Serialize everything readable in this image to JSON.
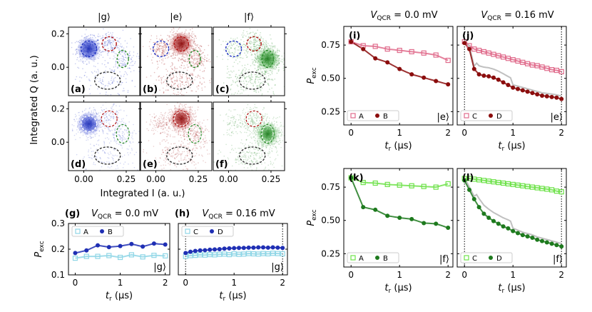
{
  "figure": {
    "scatter_titles": [
      "|g⟩",
      "|e⟩",
      "|f⟩"
    ],
    "scatter_xlabel": "Integrated I (a. u.)",
    "scatter_ylabel": "Integrated Q (a. u.)",
    "scatter_letters": [
      "(a)",
      "(b)",
      "(c)",
      "(d)",
      "(e)",
      "(f)"
    ],
    "right_titles": [
      "V_QCR = 0.0 mV",
      "V_QCR = 0.16 mV"
    ],
    "pexc_ylabel": "P_exc",
    "tr_xlabel": "t_r (µs)",
    "colors": {
      "g_dark": "#1f2fb4",
      "g_light": "#8fd6e6",
      "e_dark": "#8b0d0d",
      "e_light": "#e06c8c",
      "f_dark": "#1e7a1e",
      "f_light": "#6ee24a",
      "grey": "#c0c0c0"
    }
  },
  "chart_data": [
    {
      "type": "scatter",
      "panels": [
        "(a) |g⟩",
        "(b) |e⟩",
        "(c) |f⟩",
        "(d) |g⟩",
        "(e) |e⟩",
        "(f) |f⟩"
      ],
      "xlabel": "Integrated I (a. u.)",
      "ylabel": "Integrated Q (a. u.)",
      "xlim": [
        -0.09,
        0.33
      ],
      "ylim": [
        -0.17,
        0.24
      ],
      "xticks": [
        "0.00",
        "0.25"
      ],
      "yticks": [
        "0.0",
        "0.2"
      ],
      "state_centers": {
        "g": [
          0.03,
          0.11
        ],
        "e": [
          0.15,
          0.14
        ],
        "f": [
          0.23,
          0.05
        ],
        "other": [
          0.14,
          -0.08
        ]
      }
    },
    {
      "panel": "(g)",
      "type": "scatter+line",
      "title": "V_QCR = 0.0 mV",
      "xlabel": "t_r (µs)",
      "ylabel": "P_exc",
      "ylim": [
        0.1,
        0.3
      ],
      "xlim": [
        -0.15,
        2.1
      ],
      "state_label": "|g⟩",
      "series": [
        {
          "name": "A",
          "marker": "open-square",
          "x": [
            0.0,
            0.25,
            0.5,
            0.75,
            1.0,
            1.25,
            1.5,
            1.75,
            2.0
          ],
          "y": [
            0.165,
            0.172,
            0.172,
            0.175,
            0.168,
            0.178,
            0.17,
            0.176,
            0.174
          ]
        },
        {
          "name": "B",
          "marker": "filled-circle",
          "x": [
            0.0,
            0.25,
            0.5,
            0.75,
            1.0,
            1.25,
            1.5,
            1.75,
            2.0
          ],
          "y": [
            0.185,
            0.195,
            0.215,
            0.208,
            0.212,
            0.22,
            0.21,
            0.222,
            0.218
          ]
        }
      ]
    },
    {
      "panel": "(h)",
      "type": "scatter+line",
      "title": "V_QCR = 0.16 mV",
      "xlabel": "t_r (µs)",
      "ylim": [
        0.1,
        0.3
      ],
      "xlim": [
        -0.15,
        2.1
      ],
      "state_label": "|g⟩",
      "series": [
        {
          "name": "C",
          "marker": "open-square",
          "x": [
            0.0,
            0.1,
            0.2,
            0.3,
            0.4,
            0.5,
            0.6,
            0.7,
            0.8,
            0.9,
            1.0,
            1.1,
            1.2,
            1.3,
            1.4,
            1.5,
            1.6,
            1.7,
            1.8,
            1.9,
            2.0
          ],
          "y": [
            0.172,
            0.175,
            0.176,
            0.178,
            0.177,
            0.179,
            0.178,
            0.18,
            0.181,
            0.179,
            0.182,
            0.18,
            0.181,
            0.183,
            0.182,
            0.181,
            0.183,
            0.182,
            0.184,
            0.183,
            0.182
          ]
        },
        {
          "name": "D",
          "marker": "filled-circle",
          "x": [
            0.0,
            0.1,
            0.2,
            0.3,
            0.4,
            0.5,
            0.6,
            0.7,
            0.8,
            0.9,
            1.0,
            1.1,
            1.2,
            1.3,
            1.4,
            1.5,
            1.6,
            1.7,
            1.8,
            1.9,
            2.0
          ],
          "y": [
            0.185,
            0.19,
            0.193,
            0.195,
            0.196,
            0.198,
            0.199,
            0.2,
            0.202,
            0.203,
            0.204,
            0.205,
            0.205,
            0.206,
            0.206,
            0.207,
            0.207,
            0.206,
            0.207,
            0.206,
            0.205
          ]
        }
      ]
    },
    {
      "panel": "(i)",
      "type": "scatter+line",
      "title": "V_QCR = 0.0 mV",
      "xlabel": "t_r (µs)",
      "ylabel": "P_exc",
      "ylim": [
        0.15,
        0.89
      ],
      "xlim": [
        -0.15,
        2.1
      ],
      "state_label": "|e⟩",
      "series": [
        {
          "name": "A",
          "marker": "open-square",
          "x": [
            0.0,
            0.25,
            0.5,
            0.75,
            1.0,
            1.25,
            1.5,
            1.75,
            2.0
          ],
          "y": [
            0.775,
            0.745,
            0.74,
            0.72,
            0.71,
            0.7,
            0.69,
            0.675,
            0.635
          ]
        },
        {
          "name": "B",
          "marker": "filled-circle",
          "x": [
            0.0,
            0.25,
            0.5,
            0.75,
            1.0,
            1.25,
            1.5,
            1.75,
            2.0
          ],
          "y": [
            0.775,
            0.72,
            0.65,
            0.62,
            0.57,
            0.53,
            0.505,
            0.48,
            0.455
          ]
        }
      ]
    },
    {
      "panel": "(j)",
      "type": "scatter+line",
      "title": "V_QCR = 0.16 mV",
      "xlabel": "t_r (µs)",
      "ylim": [
        0.15,
        0.89
      ],
      "xlim": [
        -0.15,
        2.1
      ],
      "state_label": "|e⟩",
      "series": [
        {
          "name": "C",
          "marker": "open-square",
          "x": [
            0.0,
            0.1,
            0.2,
            0.3,
            0.4,
            0.5,
            0.6,
            0.7,
            0.8,
            0.9,
            1.0,
            1.1,
            1.2,
            1.3,
            1.4,
            1.5,
            1.6,
            1.7,
            1.8,
            1.9,
            2.0
          ],
          "y": [
            0.775,
            0.745,
            0.72,
            0.71,
            0.7,
            0.69,
            0.68,
            0.67,
            0.66,
            0.65,
            0.64,
            0.63,
            0.62,
            0.61,
            0.6,
            0.595,
            0.585,
            0.575,
            0.565,
            0.56,
            0.55
          ]
        },
        {
          "name": "D",
          "marker": "filled-circle",
          "x": [
            0.0,
            0.1,
            0.2,
            0.3,
            0.4,
            0.5,
            0.6,
            0.7,
            0.8,
            0.9,
            1.0,
            1.1,
            1.2,
            1.3,
            1.4,
            1.5,
            1.6,
            1.7,
            1.8,
            1.9,
            2.0
          ],
          "y": [
            0.765,
            0.72,
            0.57,
            0.53,
            0.52,
            0.515,
            0.505,
            0.49,
            0.47,
            0.45,
            0.43,
            0.42,
            0.41,
            0.4,
            0.39,
            0.38,
            0.37,
            0.365,
            0.36,
            0.355,
            0.345
          ]
        }
      ]
    },
    {
      "panel": "(k)",
      "type": "scatter+line",
      "xlabel": "t_r (µs)",
      "ylabel": "P_exc",
      "ylim": [
        0.15,
        0.89
      ],
      "xlim": [
        -0.15,
        2.1
      ],
      "state_label": "|f⟩",
      "series": [
        {
          "name": "A",
          "marker": "open-square",
          "x": [
            0.0,
            0.25,
            0.5,
            0.75,
            1.0,
            1.25,
            1.5,
            1.75,
            2.0
          ],
          "y": [
            0.82,
            0.785,
            0.78,
            0.77,
            0.765,
            0.76,
            0.755,
            0.75,
            0.775
          ]
        },
        {
          "name": "B",
          "marker": "filled-circle",
          "x": [
            0.0,
            0.25,
            0.5,
            0.75,
            1.0,
            1.25,
            1.5,
            1.75,
            2.0
          ],
          "y": [
            0.82,
            0.6,
            0.58,
            0.535,
            0.52,
            0.51,
            0.48,
            0.475,
            0.445
          ]
        }
      ]
    },
    {
      "panel": "(l)",
      "type": "scatter+line",
      "xlabel": "t_r (µs)",
      "ylim": [
        0.15,
        0.89
      ],
      "xlim": [
        -0.15,
        2.1
      ],
      "state_label": "|f⟩",
      "series": [
        {
          "name": "C",
          "marker": "open-square",
          "x": [
            0.0,
            0.1,
            0.2,
            0.3,
            0.4,
            0.5,
            0.6,
            0.7,
            0.8,
            0.9,
            1.0,
            1.1,
            1.2,
            1.3,
            1.4,
            1.5,
            1.6,
            1.7,
            1.8,
            1.9,
            2.0
          ],
          "y": [
            0.815,
            0.815,
            0.81,
            0.805,
            0.8,
            0.795,
            0.79,
            0.785,
            0.78,
            0.775,
            0.77,
            0.765,
            0.76,
            0.755,
            0.75,
            0.745,
            0.74,
            0.735,
            0.73,
            0.72,
            0.715
          ]
        },
        {
          "name": "D",
          "marker": "filled-circle",
          "x": [
            0.0,
            0.1,
            0.2,
            0.3,
            0.4,
            0.5,
            0.6,
            0.7,
            0.8,
            0.9,
            1.0,
            1.1,
            1.2,
            1.3,
            1.4,
            1.5,
            1.6,
            1.7,
            1.8,
            1.9,
            2.0
          ],
          "y": [
            0.8,
            0.73,
            0.66,
            0.6,
            0.55,
            0.52,
            0.495,
            0.475,
            0.455,
            0.44,
            0.42,
            0.405,
            0.39,
            0.38,
            0.37,
            0.355,
            0.345,
            0.335,
            0.325,
            0.315,
            0.305
          ]
        }
      ]
    }
  ]
}
